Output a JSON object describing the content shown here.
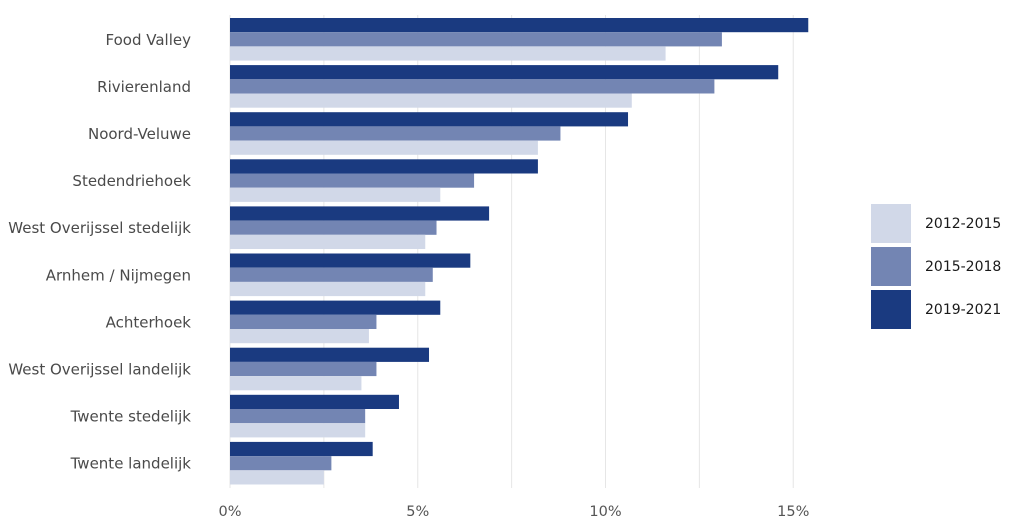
{
  "chart_data": {
    "type": "bar",
    "orientation": "horizontal",
    "categories": [
      "Food Valley",
      "Rivierenland",
      "Noord-Veluwe",
      "Stedendriehoek",
      "West Overijssel stedelijk",
      "Arnhem / Nijmegen",
      "Achterhoek",
      "West Overijssel landelijk",
      "Twente stedelijk",
      "Twente landelijk"
    ],
    "series": [
      {
        "name": "2019-2021",
        "color": "#1a3a80",
        "values": [
          15.4,
          14.6,
          10.6,
          8.2,
          6.9,
          6.4,
          5.6,
          5.3,
          4.5,
          3.8
        ]
      },
      {
        "name": "2015-2018",
        "color": "#7385b3",
        "values": [
          13.1,
          12.9,
          8.8,
          6.5,
          5.5,
          5.4,
          3.9,
          3.9,
          3.6,
          2.7
        ]
      },
      {
        "name": "2012-2015",
        "color": "#d1d8e8",
        "values": [
          11.6,
          10.7,
          8.2,
          5.6,
          5.2,
          5.2,
          3.7,
          3.5,
          3.6,
          2.5
        ]
      }
    ],
    "legend_order": [
      "2012-2015",
      "2015-2018",
      "2019-2021"
    ],
    "legend_position": "right",
    "xlim": [
      0,
      15.8
    ],
    "x_ticks": [
      0,
      5,
      10,
      15
    ],
    "x_tick_labels": [
      "0%",
      "5%",
      "10%",
      "15%"
    ],
    "grid": true
  }
}
